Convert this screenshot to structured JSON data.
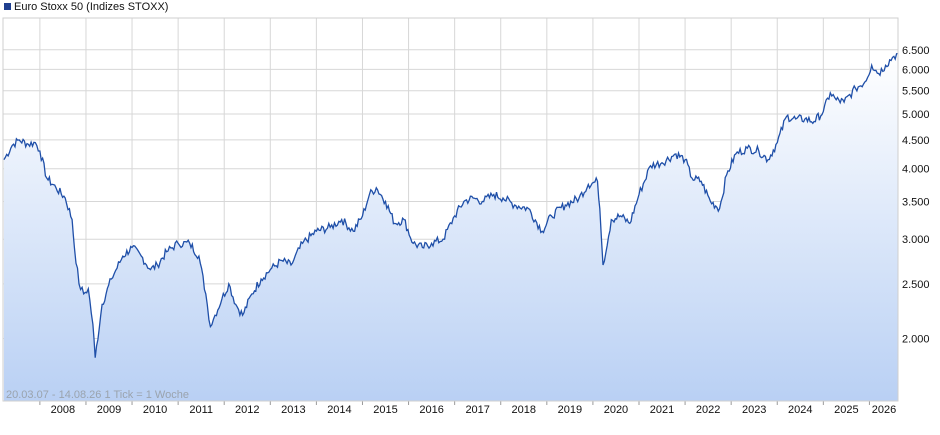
{
  "chart_data": {
    "type": "area",
    "title": "Euro Stoxx 50 (Indizes STOXX)",
    "series": [
      {
        "name": "Euro Stoxx 50 (Indizes STOXX)",
        "color": "#1f4fa8",
        "x": [
          2007.22,
          2007.4,
          2007.55,
          2007.75,
          2007.9,
          2008.0,
          2008.15,
          2008.35,
          2008.55,
          2008.7,
          2008.75,
          2008.85,
          2008.95,
          2009.05,
          2009.15,
          2009.2,
          2009.35,
          2009.55,
          2009.8,
          2010.0,
          2010.2,
          2010.4,
          2010.55,
          2010.75,
          2011.0,
          2011.25,
          2011.45,
          2011.6,
          2011.7,
          2011.8,
          2011.95,
          2012.1,
          2012.25,
          2012.4,
          2012.6,
          2012.8,
          2013.0,
          2013.25,
          2013.45,
          2013.7,
          2014.0,
          2014.3,
          2014.55,
          2014.8,
          2015.0,
          2015.15,
          2015.3,
          2015.5,
          2015.7,
          2015.9,
          2016.1,
          2016.3,
          2016.5,
          2016.75,
          2017.0,
          2017.2,
          2017.4,
          2017.6,
          2017.85,
          2018.05,
          2018.3,
          2018.6,
          2018.9,
          2019.1,
          2019.4,
          2019.7,
          2019.9,
          2020.1,
          2020.15,
          2020.22,
          2020.4,
          2020.6,
          2020.8,
          2021.0,
          2021.25,
          2021.5,
          2021.8,
          2022.0,
          2022.15,
          2022.35,
          2022.55,
          2022.75,
          2022.9,
          2023.1,
          2023.35,
          2023.6,
          2023.8,
          2024.0,
          2024.2,
          2024.4,
          2024.6,
          2024.8,
          2025.0,
          2025.15,
          2025.28,
          2025.45,
          2025.7,
          2025.9,
          2026.05,
          2026.2,
          2026.35,
          2026.5,
          2026.62
        ],
        "values": [
          4150,
          4400,
          4500,
          4420,
          4450,
          4300,
          3850,
          3700,
          3550,
          3250,
          2900,
          2500,
          2400,
          2450,
          2120,
          1850,
          2300,
          2550,
          2800,
          2900,
          2800,
          2650,
          2700,
          2850,
          2950,
          2950,
          2800,
          2400,
          2100,
          2200,
          2350,
          2500,
          2300,
          2200,
          2400,
          2550,
          2650,
          2750,
          2700,
          2950,
          3100,
          3150,
          3250,
          3100,
          3300,
          3600,
          3700,
          3500,
          3200,
          3250,
          2950,
          2900,
          2950,
          3000,
          3300,
          3500,
          3550,
          3500,
          3600,
          3550,
          3450,
          3400,
          3100,
          3300,
          3450,
          3550,
          3750,
          3800,
          3400,
          2700,
          3250,
          3300,
          3200,
          3600,
          4050,
          4100,
          4250,
          4150,
          3850,
          3800,
          3500,
          3400,
          3900,
          4250,
          4350,
          4300,
          4150,
          4450,
          4950,
          4900,
          4900,
          4850,
          5050,
          5450,
          5300,
          5250,
          5550,
          5700,
          6100,
          5900,
          6100,
          6300,
          6400
        ]
      }
    ],
    "x_ticks": [
      2008,
      2009,
      2010,
      2011,
      2012,
      2013,
      2014,
      2015,
      2016,
      2017,
      2018,
      2019,
      2020,
      2021,
      2022,
      2023,
      2024,
      2025,
      2026
    ],
    "x_tick_labels": [
      "2008",
      "2009",
      "2010",
      "2011",
      "2012",
      "2013",
      "2014",
      "2015",
      "2016",
      "2017",
      "2018",
      "2019",
      "2020",
      "2021",
      "2022",
      "2023",
      "2024",
      "2025",
      "2026"
    ],
    "y_scale": "log",
    "y_ticks": [
      2000,
      2500,
      3000,
      3500,
      4000,
      4500,
      5000,
      5500,
      6000,
      6500
    ],
    "y_tick_labels": [
      "2.000",
      "2.500",
      "3.000",
      "3.500",
      "4.000",
      "4.500",
      "5.000",
      "5.500",
      "6.000",
      "6.500"
    ],
    "ylim": [
      1550,
      7400
    ],
    "xlim": [
      2007.2,
      2026.62
    ],
    "grid": true,
    "legend_placement": "top-left",
    "footer_text": "20.03.07 - 14.08.26   1 Tick = 1 Woche",
    "colors": {
      "line": "#1f4fa8",
      "fill_top": "#ffffff",
      "fill_bottom": "#b9d0f4",
      "grid": "#d7d7d7",
      "legend_square": "#1f3f8f"
    }
  }
}
